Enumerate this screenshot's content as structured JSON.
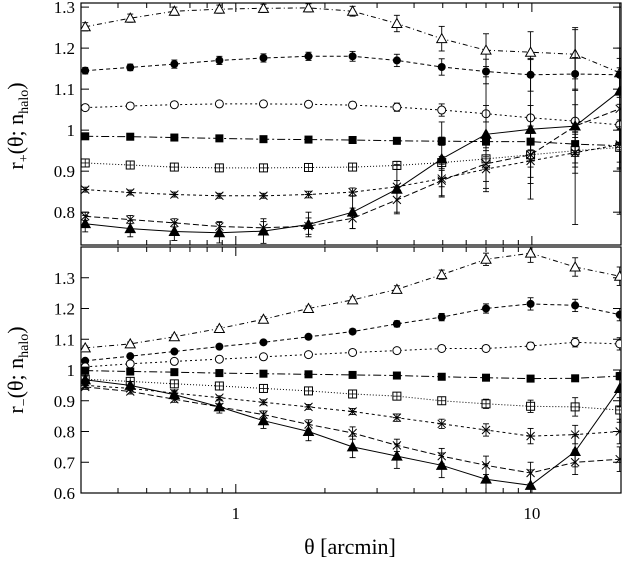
{
  "chart_data": [
    {
      "type": "line",
      "panel": "top",
      "ylabel": "r+(θ; nhalo)",
      "xscale": "log",
      "xlim": [
        0.3,
        20
      ],
      "ylim": [
        0.72,
        1.31
      ],
      "yticks": [
        0.8,
        0.9,
        1,
        1.1,
        1.2,
        1.3
      ],
      "yticklabels": [
        "0.8",
        "0.9",
        "1",
        "1.1",
        "1.2",
        "1.3"
      ],
      "x": [
        0.31,
        0.44,
        0.62,
        0.88,
        1.24,
        1.76,
        2.48,
        3.5,
        4.96,
        7,
        9.9,
        14,
        19.8
      ],
      "series": [
        {
          "marker": "triangle-open",
          "dash": "5,3,1,3",
          "values": [
            1.252,
            1.273,
            1.29,
            1.295,
            1.297,
            1.298,
            1.29,
            1.26,
            1.223,
            1.195,
            1.19,
            1.185,
            1.14
          ],
          "errors": [
            0.01,
            0.01,
            0.01,
            0.01,
            0.01,
            0.01,
            0.012,
            0.02,
            0.03,
            0.04,
            0.05,
            0.06,
            0.06
          ]
        },
        {
          "marker": "circle-filled",
          "dash": "4,3",
          "values": [
            1.145,
            1.153,
            1.161,
            1.17,
            1.176,
            1.18,
            1.18,
            1.17,
            1.154,
            1.143,
            1.135,
            1.137,
            1.135
          ],
          "errors": [
            0.008,
            0.008,
            0.01,
            0.01,
            0.01,
            0.01,
            0.012,
            0.015,
            0.02,
            0.03,
            0.04,
            0.04,
            0.04
          ]
        },
        {
          "marker": "circle-open",
          "dash": "2,3",
          "values": [
            1.055,
            1.059,
            1.062,
            1.064,
            1.064,
            1.063,
            1.061,
            1.056,
            1.049,
            1.04,
            1.03,
            1.022,
            1.013
          ],
          "errors": [
            0.006,
            0.006,
            0.006,
            0.006,
            0.006,
            0.006,
            0.008,
            0.01,
            0.015,
            0.02,
            0.03,
            0.04,
            0.05
          ]
        },
        {
          "marker": "square-filled",
          "dash": "8,3,2,3",
          "values": [
            0.985,
            0.984,
            0.982,
            0.98,
            0.978,
            0.977,
            0.976,
            0.974,
            0.973,
            0.972,
            0.972,
            0.966,
            0.962
          ],
          "errors": [
            0.005,
            0.005,
            0.005,
            0.005,
            0.005,
            0.005,
            0.006,
            0.008,
            0.01,
            0.015,
            0.02,
            0.03,
            0.04
          ]
        },
        {
          "marker": "square-dotted",
          "dash": "1,2",
          "values": [
            0.92,
            0.915,
            0.91,
            0.908,
            0.908,
            0.909,
            0.91,
            0.914,
            0.921,
            0.93,
            0.94,
            0.95,
            0.958
          ],
          "errors": [
            0.006,
            0.006,
            0.006,
            0.006,
            0.006,
            0.006,
            0.008,
            0.01,
            0.015,
            0.02,
            0.03,
            0.04,
            0.05
          ]
        },
        {
          "marker": "star",
          "dash": "3,3",
          "values": [
            0.855,
            0.848,
            0.843,
            0.84,
            0.84,
            0.843,
            0.849,
            0.862,
            0.882,
            0.905,
            0.925,
            0.945,
            0.965
          ],
          "errors": [
            0.006,
            0.006,
            0.006,
            0.006,
            0.006,
            0.008,
            0.01,
            0.015,
            0.02,
            0.03,
            0.04,
            0.05,
            0.06
          ]
        },
        {
          "marker": "cross",
          "dash": "6,3",
          "values": [
            0.79,
            0.782,
            0.774,
            0.765,
            0.762,
            0.766,
            0.785,
            0.83,
            0.877,
            0.918,
            0.94,
            1.01,
            1.052
          ],
          "errors": [
            0.01,
            0.01,
            0.01,
            0.012,
            0.015,
            0.02,
            0.025,
            0.03,
            0.04,
            0.06,
            0.07,
            0.09,
            0.1
          ]
        },
        {
          "marker": "triangle-filled",
          "dash": "",
          "values": [
            0.772,
            0.76,
            0.753,
            0.75,
            0.754,
            0.77,
            0.8,
            0.856,
            0.93,
            0.99,
            1.002,
            1.01,
            1.095
          ],
          "errors": [
            0.02,
            0.02,
            0.022,
            0.025,
            0.03,
            0.03,
            0.04,
            0.06,
            0.09,
            0.14,
            0.17,
            0.24,
            0.3
          ]
        }
      ]
    },
    {
      "type": "line",
      "panel": "bottom",
      "ylabel": "r−(θ; nhalo)",
      "xlabel": "θ [arcmin]",
      "xscale": "log",
      "xlim": [
        0.3,
        20
      ],
      "ylim": [
        0.6,
        1.4
      ],
      "yticks": [
        0.6,
        0.7,
        0.8,
        0.9,
        1,
        1.1,
        1.2,
        1.3
      ],
      "yticklabels": [
        "0.6",
        "0.7",
        "0.8",
        "0.9",
        "1",
        "1.1",
        "1.2",
        "1.3"
      ],
      "xticks": [
        1,
        10
      ],
      "xticklabels": [
        "1",
        "10"
      ],
      "x": [
        0.31,
        0.44,
        0.62,
        0.88,
        1.24,
        1.76,
        2.48,
        3.5,
        4.96,
        7,
        9.9,
        14,
        19.8
      ],
      "series": [
        {
          "marker": "triangle-open",
          "dash": "5,3,1,3",
          "values": [
            1.072,
            1.085,
            1.108,
            1.135,
            1.165,
            1.2,
            1.228,
            1.262,
            1.31,
            1.36,
            1.38,
            1.335,
            1.305
          ],
          "errors": [
            0.006,
            0.006,
            0.006,
            0.006,
            0.008,
            0.008,
            0.01,
            0.012,
            0.015,
            0.02,
            0.03,
            0.03,
            0.03
          ]
        },
        {
          "marker": "circle-filled",
          "dash": "4,3",
          "values": [
            1.03,
            1.045,
            1.06,
            1.076,
            1.09,
            1.108,
            1.125,
            1.15,
            1.172,
            1.2,
            1.215,
            1.21,
            1.18
          ],
          "errors": [
            0.005,
            0.005,
            0.006,
            0.006,
            0.006,
            0.008,
            0.008,
            0.01,
            0.012,
            0.015,
            0.02,
            0.02,
            0.02
          ]
        },
        {
          "marker": "circle-open",
          "dash": "2,3",
          "values": [
            1.01,
            1.02,
            1.028,
            1.035,
            1.043,
            1.05,
            1.057,
            1.063,
            1.07,
            1.07,
            1.078,
            1.09,
            1.085
          ],
          "errors": [
            0.005,
            0.005,
            0.005,
            0.005,
            0.005,
            0.006,
            0.006,
            0.008,
            0.008,
            0.01,
            0.012,
            0.015,
            0.02
          ]
        },
        {
          "marker": "square-filled",
          "dash": "8,3,2,3",
          "values": [
            0.998,
            0.995,
            0.993,
            0.99,
            0.988,
            0.986,
            0.984,
            0.982,
            0.978,
            0.975,
            0.972,
            0.973,
            0.98
          ],
          "errors": [
            0.004,
            0.004,
            0.004,
            0.004,
            0.004,
            0.005,
            0.005,
            0.005,
            0.006,
            0.006,
            0.008,
            0.01,
            0.012
          ]
        },
        {
          "marker": "square-dotted",
          "dash": "1,2",
          "values": [
            0.97,
            0.963,
            0.955,
            0.948,
            0.94,
            0.932,
            0.922,
            0.915,
            0.9,
            0.89,
            0.882,
            0.88,
            0.87
          ],
          "errors": [
            0.005,
            0.005,
            0.005,
            0.005,
            0.006,
            0.006,
            0.008,
            0.01,
            0.012,
            0.015,
            0.02,
            0.03,
            0.04
          ]
        },
        {
          "marker": "star",
          "dash": "3,3",
          "values": [
            0.95,
            0.94,
            0.925,
            0.91,
            0.895,
            0.88,
            0.865,
            0.845,
            0.825,
            0.805,
            0.785,
            0.79,
            0.8
          ],
          "errors": [
            0.006,
            0.006,
            0.006,
            0.006,
            0.008,
            0.008,
            0.01,
            0.012,
            0.015,
            0.02,
            0.025,
            0.03,
            0.04
          ]
        },
        {
          "marker": "cross",
          "dash": "6,3",
          "values": [
            0.945,
            0.93,
            0.905,
            0.88,
            0.855,
            0.823,
            0.795,
            0.755,
            0.72,
            0.69,
            0.665,
            0.7,
            0.71
          ],
          "errors": [
            0.008,
            0.008,
            0.01,
            0.01,
            0.012,
            0.015,
            0.02,
            0.02,
            0.025,
            0.03,
            0.035,
            0.04,
            0.04
          ]
        },
        {
          "marker": "triangle-filled",
          "dash": "",
          "values": [
            0.968,
            0.95,
            0.92,
            0.88,
            0.835,
            0.8,
            0.75,
            0.72,
            0.69,
            0.645,
            0.625,
            0.735,
            0.94
          ],
          "errors": [
            0.012,
            0.012,
            0.015,
            0.02,
            0.025,
            0.03,
            0.035,
            0.04,
            0.04,
            0.05,
            0.05,
            0.05,
            0.06
          ]
        }
      ]
    }
  ]
}
